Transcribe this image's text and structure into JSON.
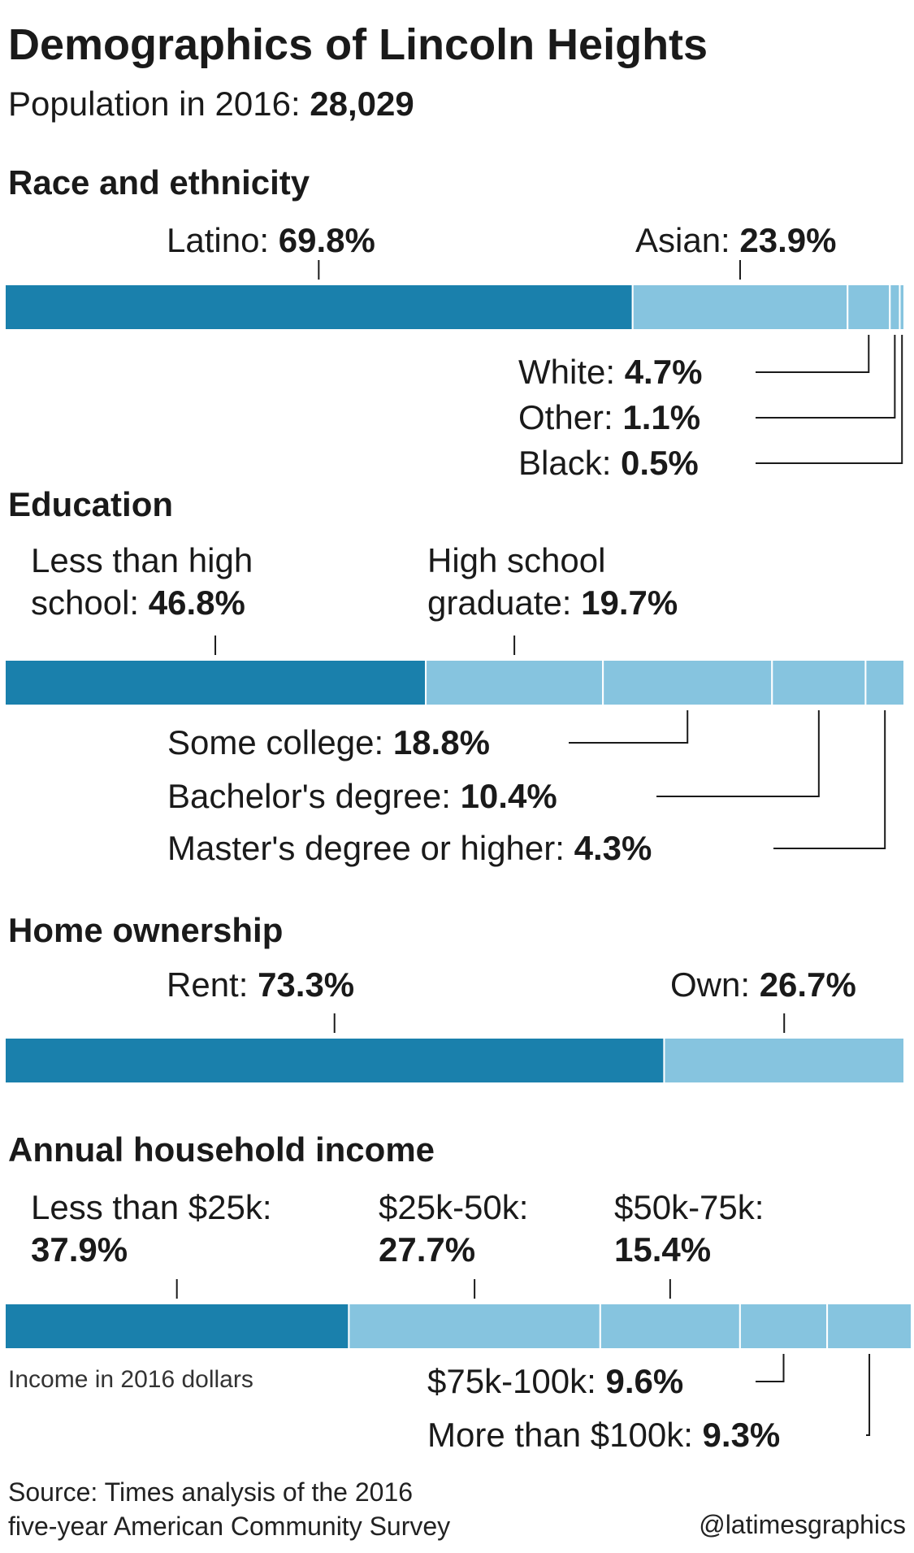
{
  "title": "Demographics of Lincoln Heights",
  "subtitle_prefix": "Population in 2016: ",
  "subtitle_value": "28,029",
  "colors": {
    "primary": "#1a80ac",
    "secondary": "#86c4df",
    "leader": "#1a1a1a"
  },
  "chart_data": [
    {
      "type": "bar",
      "title": "Race and ethnicity",
      "series": [
        {
          "label_prefix": "Latino: ",
          "label_value": "69.8%",
          "value": 69.8
        },
        {
          "label_prefix": "Asian: ",
          "label_value": "23.9%",
          "value": 23.9
        },
        {
          "label_prefix": "White: ",
          "label_value": "4.7%",
          "value": 4.7
        },
        {
          "label_prefix": "Other: ",
          "label_value": "1.1%",
          "value": 1.1
        },
        {
          "label_prefix": "Black: ",
          "label_value": "0.5%",
          "value": 0.5
        }
      ]
    },
    {
      "type": "bar",
      "title": "Education",
      "series": [
        {
          "label_line1": "Less than high",
          "label_prefix": "school: ",
          "label_value": "46.8%",
          "value": 46.8
        },
        {
          "label_line1": "High school",
          "label_prefix": "graduate: ",
          "label_value": "19.7%",
          "value": 19.7
        },
        {
          "label_prefix": "Some college: ",
          "label_value": "18.8%",
          "value": 18.8
        },
        {
          "label_prefix": "Bachelor's degree: ",
          "label_value": "10.4%",
          "value": 10.4
        },
        {
          "label_prefix": "Master's degree or higher: ",
          "label_value": "4.3%",
          "value": 4.3
        }
      ]
    },
    {
      "type": "bar",
      "title": "Home ownership",
      "series": [
        {
          "label_prefix": "Rent: ",
          "label_value": "73.3%",
          "value": 73.3
        },
        {
          "label_prefix": "Own: ",
          "label_value": "26.7%",
          "value": 26.7
        }
      ]
    },
    {
      "type": "bar",
      "title": "Annual household income",
      "note": "Income in 2016 dollars",
      "series": [
        {
          "label_line1": "Less than $25k:",
          "label_value": "37.9%",
          "value": 37.9
        },
        {
          "label_line1": "$25k-50k:",
          "label_value": "27.7%",
          "value": 27.7
        },
        {
          "label_line1": "$50k-75k:",
          "label_value": "15.4%",
          "value": 15.4
        },
        {
          "label_prefix": "$75k-100k: ",
          "label_value": "9.6%",
          "value": 9.6
        },
        {
          "label_prefix": "More than $100k: ",
          "label_value": "9.3%",
          "value": 9.3
        }
      ]
    }
  ],
  "source_line1": "Source: Times analysis of the 2016",
  "source_line2": "five-year American Community Survey",
  "credit": "@latimesgraphics"
}
